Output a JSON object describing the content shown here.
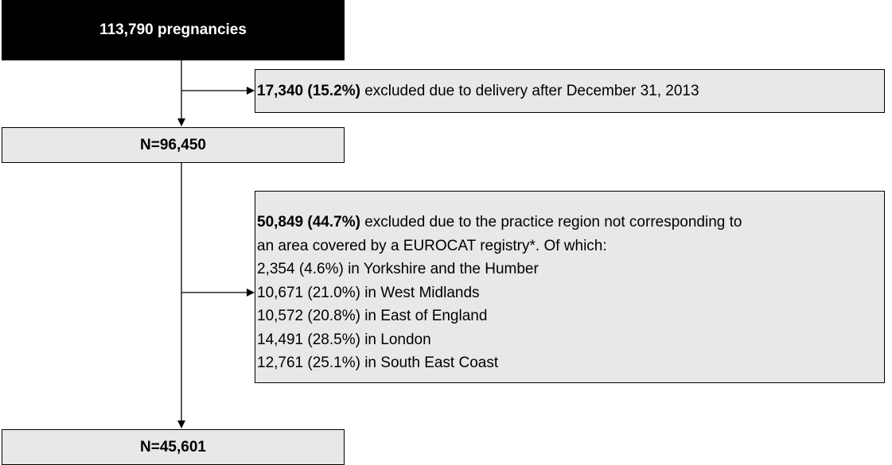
{
  "nodes": [
    {
      "label": "113,790 pregnancies"
    },
    {
      "label": "N=96,450"
    },
    {
      "label": "N=45,601"
    }
  ],
  "exclusions": [
    {
      "bold": "17,340 (15.2%)",
      "text": "excluded due to delivery after December 31, 2013",
      "lines": []
    },
    {
      "bold": "50,849 (44.7%)",
      "text": "excluded due to the practice region not corresponding to",
      "lines": [
        "an area covered by a EUROCAT registry*. Of which:",
        "2,354 (4.6%) in Yorkshire and the Humber",
        "10,671 (21.0%) in West Midlands",
        "10,572 (20.8%) in East of England",
        "14,491 (28.5%) in London",
        "12,761 (25.1%) in South East Coast"
      ]
    }
  ]
}
